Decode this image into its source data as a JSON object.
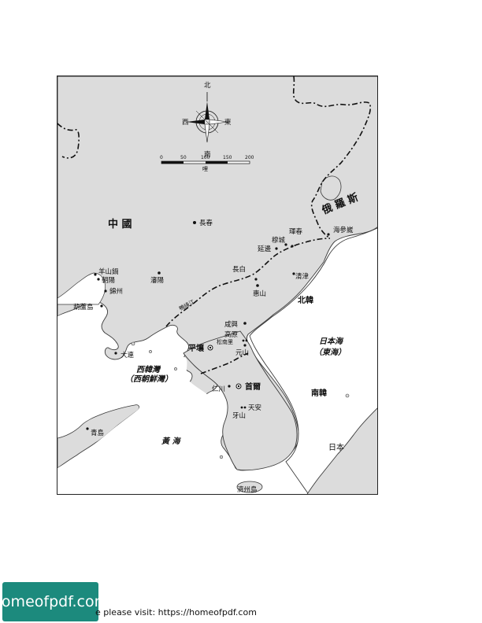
{
  "compass": {
    "north": "北",
    "south": "南",
    "east": "東",
    "west": "西"
  },
  "scale": {
    "ticks": [
      "0",
      "50",
      "100",
      "150",
      "200"
    ],
    "unit": "哩"
  },
  "labels": {
    "china": "中 國",
    "russia": "俄 羅 斯",
    "north_korea": "北韓",
    "south_korea": "南韓",
    "japan": "日本",
    "sea_of_japan": "日本海",
    "east_sea": "（東海）",
    "west_korea_bay": "西韓灣",
    "west_korea_bay_alt": "（西朝鮮灣）",
    "yellow_sea": "黃 海",
    "yalu_river": "鴨綠江"
  },
  "cities": {
    "changchun": "長春",
    "hunchun": "琿春",
    "mukcheng": "穆城",
    "yanji": "延邊",
    "haishenwai": "海參崴",
    "yangshanguo": "羊山鍋",
    "chaoyang": "朝陽",
    "shenyang": "瀋陽",
    "jinzhou": "錦州",
    "huludao": "葫蘆島",
    "changbai": "長白",
    "hyesan": "惠山",
    "chongjin": "清津",
    "hamhung": "咸興",
    "kowon": "高原",
    "songnamni": "松南里",
    "wonsan": "元山",
    "pyongyang": "平壤",
    "dalian": "大連",
    "incheon": "仁川",
    "seoul": "首爾",
    "cheonan": "天安",
    "asan": "牙山",
    "qingdao": "青島",
    "jejudo": "濟州島"
  },
  "colors": {
    "sea": "#ffffff",
    "land": "#dcdcdc",
    "coast": "#3a3a3a",
    "badge": "#1c8a7d"
  },
  "footer": {
    "badge_text": "homeofpdf.com",
    "note": "e please visit: https://homeofpdf.com"
  }
}
